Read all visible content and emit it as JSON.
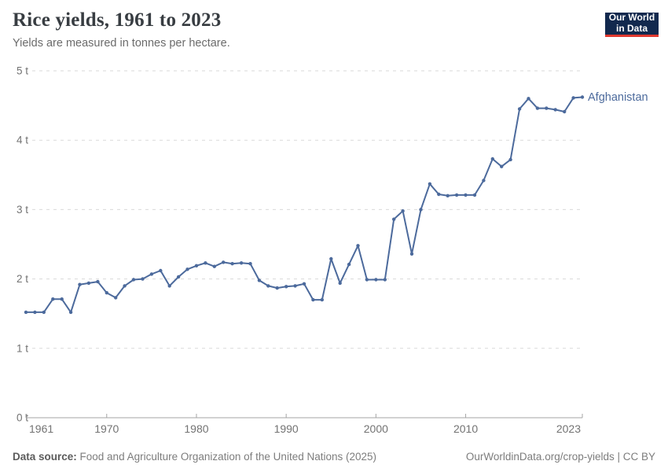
{
  "header": {
    "title": "Rice yields, 1961 to 2023",
    "subtitle": "Yields are measured in tonnes per hectare."
  },
  "logo": {
    "line1": "Our World",
    "line2": "in Data",
    "bg_color": "#12294e",
    "accent_color": "#e0392f"
  },
  "chart_data": {
    "type": "line",
    "title": "Rice yields, 1961 to 2023",
    "ylabel": "tonnes per hectare",
    "xlabel": "",
    "unit": "t",
    "grid": "horizontal-dashed",
    "legend_position": "end-of-line-label",
    "xlim": [
      1961,
      2023
    ],
    "ylim": [
      0,
      5
    ],
    "x_ticks": [
      1961,
      1970,
      1980,
      1990,
      2000,
      2010,
      2023
    ],
    "y_ticks": [
      0,
      1,
      2,
      3,
      4,
      5
    ],
    "y_tick_labels": [
      "0 t",
      "1 t",
      "2 t",
      "3 t",
      "4 t",
      "5 t"
    ],
    "x": [
      1961,
      1962,
      1963,
      1964,
      1965,
      1966,
      1967,
      1968,
      1969,
      1970,
      1971,
      1972,
      1973,
      1974,
      1975,
      1976,
      1977,
      1978,
      1979,
      1980,
      1981,
      1982,
      1983,
      1984,
      1985,
      1986,
      1987,
      1988,
      1989,
      1990,
      1991,
      1992,
      1993,
      1994,
      1995,
      1996,
      1997,
      1998,
      1999,
      2000,
      2001,
      2002,
      2003,
      2004,
      2005,
      2006,
      2007,
      2008,
      2009,
      2010,
      2011,
      2012,
      2013,
      2014,
      2015,
      2016,
      2017,
      2018,
      2019,
      2020,
      2021,
      2022,
      2023
    ],
    "series": [
      {
        "name": "Afghanistan",
        "color": "#4C6A9C",
        "values": [
          1.52,
          1.52,
          1.52,
          1.71,
          1.71,
          1.52,
          1.92,
          1.94,
          1.96,
          1.8,
          1.73,
          1.9,
          1.99,
          2.0,
          2.07,
          2.12,
          1.9,
          2.03,
          2.14,
          2.19,
          2.23,
          2.18,
          2.24,
          2.22,
          2.23,
          2.22,
          1.98,
          1.9,
          1.87,
          1.89,
          1.9,
          1.93,
          1.7,
          1.7,
          2.29,
          1.94,
          2.21,
          2.48,
          1.99,
          1.99,
          1.99,
          2.86,
          2.98,
          2.36,
          3.0,
          3.37,
          3.22,
          3.2,
          3.21,
          3.21,
          3.21,
          3.42,
          3.73,
          3.62,
          3.72,
          4.45,
          4.6,
          4.46,
          4.46,
          4.44,
          4.41,
          4.61,
          4.62
        ]
      }
    ]
  },
  "colors": {
    "grid": "#dadada",
    "axis": "#a5a5a5",
    "tick_label": "#737373"
  },
  "footer": {
    "source_label": "Data source:",
    "source_text": " Food and Agriculture Organization of the United Nations (2025)",
    "credit": "OurWorldinData.org/crop-yields | CC BY"
  }
}
